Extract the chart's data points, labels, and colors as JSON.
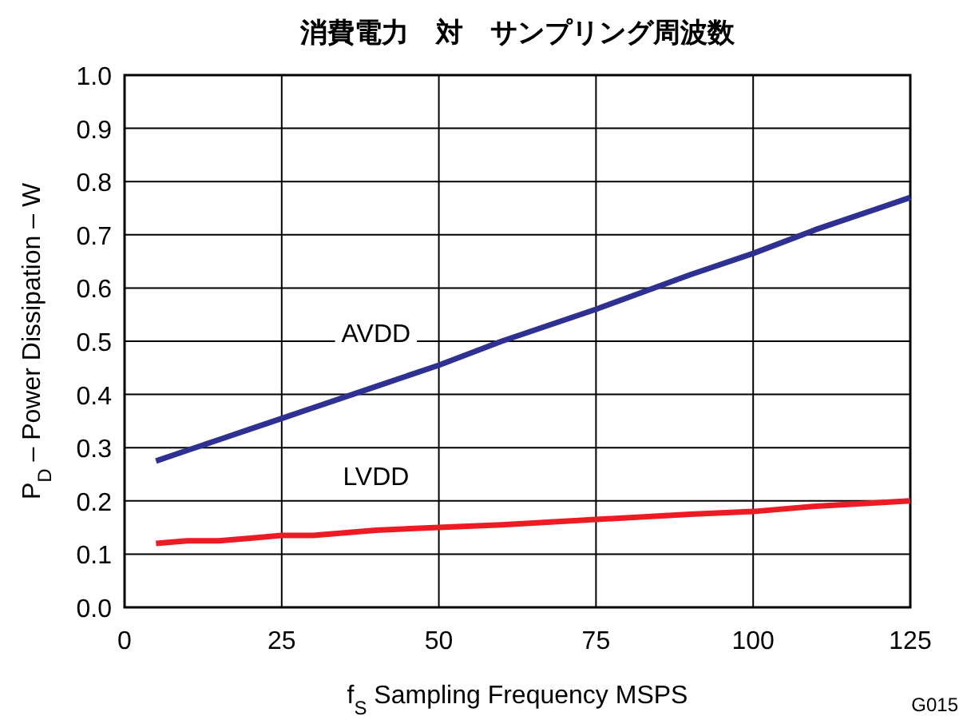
{
  "chart_data": {
    "type": "line",
    "title": "消費電力　対　サンプリング周波数",
    "xlabel": "f$_{S}$ Sampling Frequency  MSPS",
    "ylabel": "P$_{D}$ – Power Dissipation – W",
    "xlim": [
      0,
      125
    ],
    "xticks": [
      0,
      25,
      50,
      75,
      100,
      125
    ],
    "ylim": [
      0,
      1
    ],
    "yticks": [
      {
        "value": 0,
        "label": "0.0"
      },
      {
        "value": 0.1,
        "label": "0.1"
      },
      {
        "value": 0.2,
        "label": "0.2"
      },
      {
        "value": 0.3,
        "label": "0.3"
      },
      {
        "value": 0.4,
        "label": "0.4"
      },
      {
        "value": 0.5,
        "label": "0.5"
      },
      {
        "value": 0.6,
        "label": "0.6"
      },
      {
        "value": 0.7,
        "label": "0.7"
      },
      {
        "value": 0.8,
        "label": "0.8"
      },
      {
        "value": 0.9,
        "label": "0.9"
      },
      {
        "value": 1,
        "label": "1.0"
      }
    ],
    "grid": true,
    "legend": false,
    "marker": "none",
    "line_style": "solid",
    "x": [
      5,
      10,
      15,
      20,
      25,
      30,
      40,
      50,
      60,
      75,
      90,
      100,
      110,
      125
    ],
    "series": [
      {
        "name": "AVDD",
        "color": "#2e3192",
        "values": [
          0.275,
          0.295,
          0.315,
          0.335,
          0.355,
          0.375,
          0.415,
          0.455,
          0.5,
          0.56,
          0.625,
          0.665,
          0.71,
          0.77
        ]
      },
      {
        "name": "LVDD",
        "color": "#ed1c24",
        "values": [
          0.12,
          0.125,
          0.125,
          0.13,
          0.135,
          0.135,
          0.145,
          0.15,
          0.155,
          0.165,
          0.175,
          0.18,
          0.19,
          0.2
        ]
      }
    ],
    "annotations": [
      "G015"
    ]
  }
}
